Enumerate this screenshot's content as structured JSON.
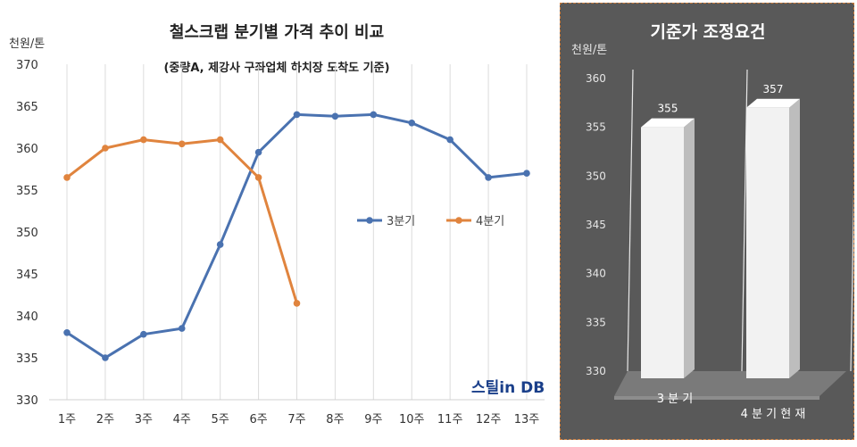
{
  "chart_data": [
    {
      "type": "line",
      "title": "철스크랩 분기별 가격 추이 비교",
      "subtitle": "(중량A, 제강사 구좌업체 하치장 도착도 기준)",
      "ylabel": "천원/톤",
      "xlabel": "",
      "ylim": [
        330,
        370
      ],
      "yticks": [
        330,
        335,
        340,
        345,
        350,
        355,
        360,
        365,
        370
      ],
      "categories": [
        "1주",
        "2주",
        "3주",
        "4주",
        "5주",
        "6주",
        "7주",
        "8주",
        "9주",
        "10주",
        "11주",
        "12주",
        "13주"
      ],
      "grid": "vertical",
      "legend": "right-middle",
      "series": [
        {
          "name": "3분기",
          "color": "#4a72b0",
          "values": [
            338,
            335,
            337.8,
            338.5,
            348.5,
            359.5,
            364,
            363.8,
            364,
            363,
            361,
            356.5,
            357
          ]
        },
        {
          "name": "4분기",
          "color": "#e0843e",
          "values": [
            356.5,
            360,
            361,
            360.5,
            361,
            356.5,
            341.5,
            null,
            null,
            null,
            null,
            null,
            null
          ]
        }
      ],
      "watermark": "스틸in DB"
    },
    {
      "type": "bar",
      "title": "기준가 조정요건",
      "ylabel": "천원/톤",
      "ylim": [
        330,
        360
      ],
      "yticks": [
        330,
        335,
        340,
        345,
        350,
        355,
        360
      ],
      "categories": [
        "3 분 기",
        "4 분 기  현 재"
      ],
      "values": [
        355,
        357
      ],
      "style": "3d-column",
      "background": "#595959",
      "bar_color": "#eeeeee"
    }
  ]
}
